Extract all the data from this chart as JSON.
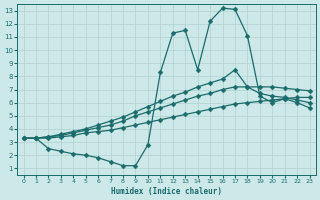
{
  "xlabel": "Humidex (Indice chaleur)",
  "bg_color": "#cde8e8",
  "line_color": "#1a6b6b",
  "grid_color": "#b0d0d0",
  "xlim": [
    -0.5,
    23.5
  ],
  "ylim": [
    0.5,
    13.5
  ],
  "xticks": [
    0,
    1,
    2,
    3,
    4,
    5,
    6,
    7,
    8,
    9,
    10,
    11,
    12,
    13,
    14,
    15,
    16,
    17,
    18,
    19,
    20,
    21,
    22,
    23
  ],
  "yticks": [
    1,
    2,
    3,
    4,
    5,
    6,
    7,
    8,
    9,
    10,
    11,
    12,
    13
  ],
  "line_bottom_x": [
    0,
    1,
    2,
    3,
    4,
    5,
    6,
    7,
    8,
    9,
    10,
    11,
    12,
    13,
    14,
    15,
    16,
    17,
    18,
    19,
    20,
    21,
    22,
    23
  ],
  "line_bottom_y": [
    3.3,
    3.3,
    3.3,
    3.4,
    3.5,
    3.7,
    3.8,
    3.9,
    4.1,
    4.3,
    4.5,
    4.7,
    4.9,
    5.1,
    5.3,
    5.5,
    5.7,
    5.9,
    6.0,
    6.1,
    6.2,
    6.3,
    6.4,
    6.4
  ],
  "line_mid_x": [
    0,
    1,
    2,
    3,
    4,
    5,
    6,
    7,
    8,
    9,
    10,
    11,
    12,
    13,
    14,
    15,
    16,
    17,
    18,
    19,
    20,
    21,
    22,
    23
  ],
  "line_mid_y": [
    3.3,
    3.3,
    3.4,
    3.5,
    3.7,
    3.9,
    4.1,
    4.3,
    4.6,
    5.0,
    5.3,
    5.6,
    5.9,
    6.2,
    6.5,
    6.7,
    7.0,
    7.2,
    7.2,
    7.2,
    7.2,
    7.1,
    7.0,
    6.9
  ],
  "line_upper_x": [
    0,
    1,
    2,
    3,
    4,
    5,
    6,
    7,
    8,
    9,
    10,
    11,
    12,
    13,
    14,
    15,
    16,
    17,
    18,
    19,
    20,
    21,
    22,
    23
  ],
  "line_upper_y": [
    3.3,
    3.3,
    3.4,
    3.6,
    3.8,
    4.0,
    4.3,
    4.6,
    4.9,
    5.3,
    5.7,
    6.1,
    6.5,
    6.8,
    7.2,
    7.5,
    7.8,
    8.5,
    7.2,
    6.7,
    6.5,
    6.4,
    6.2,
    6.0
  ],
  "line_peak_x": [
    1,
    2,
    3,
    4,
    5,
    6,
    7,
    8,
    9,
    10,
    11,
    12,
    13,
    14,
    15,
    16,
    17,
    18,
    19,
    20,
    21,
    22,
    23
  ],
  "line_peak_y": [
    3.3,
    2.5,
    2.3,
    2.1,
    2.0,
    1.8,
    1.5,
    1.2,
    1.2,
    2.8,
    8.3,
    11.3,
    11.5,
    8.5,
    12.2,
    13.2,
    13.1,
    11.1,
    6.5,
    6.0,
    6.3,
    6.0,
    5.6
  ],
  "marker": "D",
  "markersize": 2.5,
  "linewidth": 0.9
}
